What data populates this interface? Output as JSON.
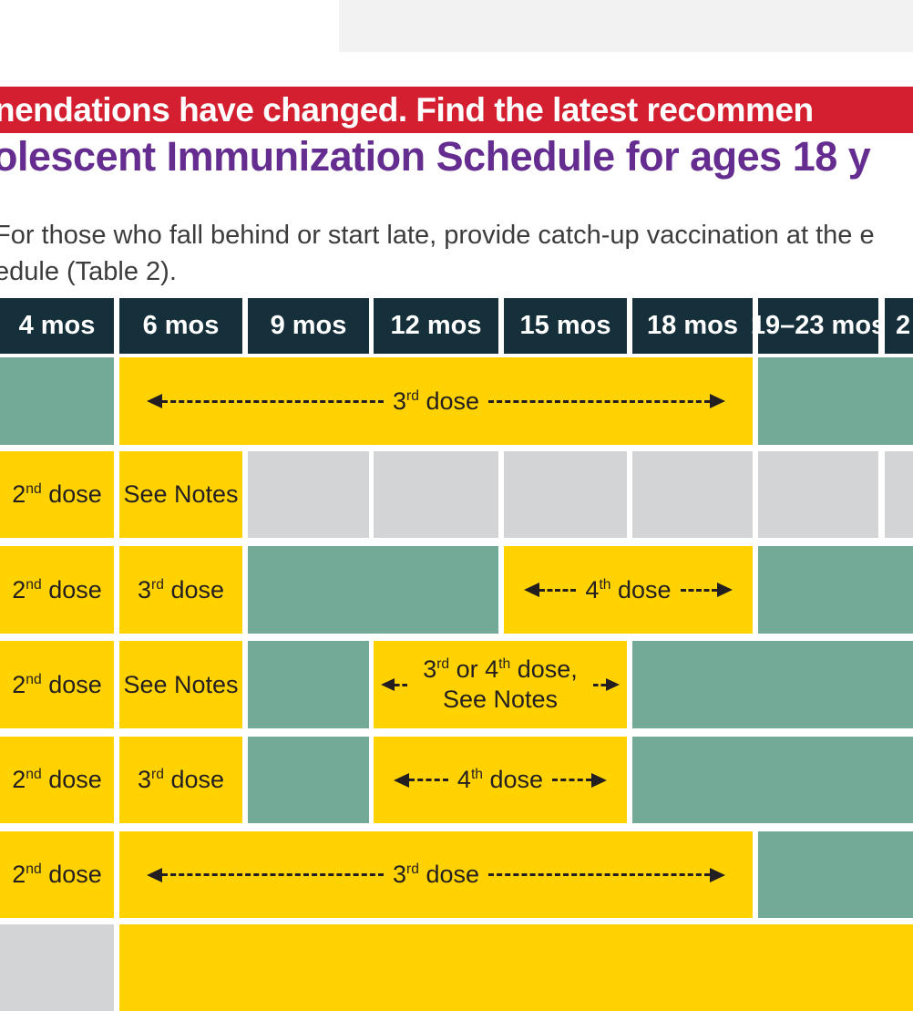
{
  "colors": {
    "banner_red": "#d31f2f",
    "title_purple": "#662d91",
    "header_navy": "#16303b",
    "range_teal": "#73aa97",
    "dose_yellow": "#ffd200",
    "no_recommendation_gray": "#d2d4d5",
    "cell_text": "#231f20",
    "top_box_gray": "#f2f2f2"
  },
  "banner": {
    "text": "nendations have changed. Find the latest recommen"
  },
  "heading": {
    "text": "olescent Immunization Schedule for ages 18 y"
  },
  "intro": {
    "line1": "For those who fall behind or start late, provide catch-up vaccination at the e",
    "line2": "edule (Table 2)."
  },
  "table": {
    "headers": [
      "4 mos",
      "6 mos",
      "9 mos",
      "12 mos",
      "15 mos",
      "18 mos",
      "19–23 mos",
      "2"
    ],
    "rows": [
      {
        "cells": {
          "c2_6": {
            "num": "3",
            "sup": "rd",
            "rest": " dose"
          }
        }
      },
      {
        "cells": {
          "c1": {
            "num": "2",
            "sup": "nd",
            "rest": " dose"
          },
          "c2": {
            "label": "See Notes"
          }
        }
      },
      {
        "cells": {
          "c1": {
            "num": "2",
            "sup": "nd",
            "rest": " dose"
          },
          "c2": {
            "num": "3",
            "sup": "rd",
            "rest": " dose"
          },
          "c5_6": {
            "num": "4",
            "sup": "th",
            "rest": " dose"
          }
        }
      },
      {
        "cells": {
          "c1": {
            "num": "2",
            "sup": "nd",
            "rest": " dose"
          },
          "c2": {
            "label": "See Notes"
          },
          "c4_5": {
            "l1a": "3",
            "l1b": "rd",
            "l1c": " or 4",
            "l1d": "th",
            "l1e": " dose,",
            "l2": "See Notes"
          }
        }
      },
      {
        "cells": {
          "c1": {
            "num": "2",
            "sup": "nd",
            "rest": " dose"
          },
          "c2": {
            "num": "3",
            "sup": "rd",
            "rest": " dose"
          },
          "c4_5": {
            "num": "4",
            "sup": "th",
            "rest": " dose"
          }
        }
      },
      {
        "cells": {
          "c1": {
            "num": "2",
            "sup": "nd",
            "rest": " dose"
          },
          "c2_6": {
            "num": "3",
            "sup": "rd",
            "rest": " dose"
          }
        }
      },
      {
        "cells": {}
      }
    ]
  }
}
